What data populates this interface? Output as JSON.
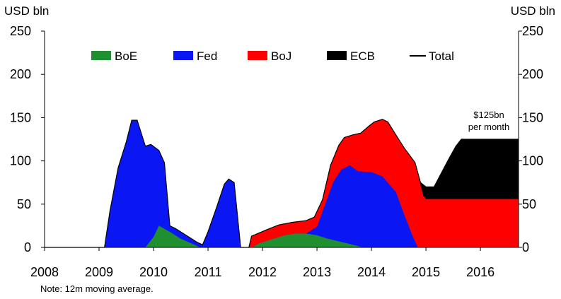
{
  "chart_data": {
    "type": "area",
    "stacked": true,
    "ylabel_left": "USD bln",
    "ylabel_right": "USD bln",
    "ylim": [
      0,
      250
    ],
    "yticks": [
      0,
      50,
      100,
      150,
      200,
      250
    ],
    "xlim": [
      2008.0,
      2016.7
    ],
    "xticks": [
      "2008",
      "2009",
      "2010",
      "2011",
      "2012",
      "2013",
      "2014",
      "2015",
      "2016"
    ],
    "legend_position": "top",
    "legend": [
      "BoE",
      "Fed",
      "BoJ",
      "ECB",
      "Total"
    ],
    "annotation": "$125bn\nper month",
    "note": "Note: 12m moving average.",
    "colors": {
      "BoE": "#1f8f2f",
      "Fed": "#0b17f2",
      "BoJ": "#ff0000",
      "ECB": "#000000",
      "Total": "#000000"
    },
    "series": [
      {
        "name": "BoE",
        "points": [
          [
            2008.0,
            0
          ],
          [
            2009.85,
            0
          ],
          [
            2010.0,
            12
          ],
          [
            2010.1,
            25
          ],
          [
            2010.3,
            18
          ],
          [
            2010.5,
            10
          ],
          [
            2010.75,
            3
          ],
          [
            2010.85,
            0
          ],
          [
            2011.8,
            0
          ],
          [
            2011.95,
            5
          ],
          [
            2012.2,
            10
          ],
          [
            2012.4,
            14
          ],
          [
            2012.6,
            16
          ],
          [
            2012.8,
            16
          ],
          [
            2013.0,
            14
          ],
          [
            2013.2,
            10
          ],
          [
            2013.4,
            7
          ],
          [
            2013.6,
            4
          ],
          [
            2013.85,
            0
          ],
          [
            2016.7,
            0
          ]
        ]
      },
      {
        "name": "Fed",
        "points": [
          [
            2008.0,
            0
          ],
          [
            2009.1,
            0
          ],
          [
            2009.2,
            42
          ],
          [
            2009.35,
            92
          ],
          [
            2009.5,
            122
          ],
          [
            2009.6,
            147
          ],
          [
            2009.7,
            147
          ],
          [
            2009.85,
            117
          ],
          [
            2009.95,
            119
          ],
          [
            2010.1,
            112
          ],
          [
            2010.2,
            98
          ],
          [
            2010.3,
            25
          ],
          [
            2010.4,
            22
          ],
          [
            2010.6,
            14
          ],
          [
            2010.8,
            6
          ],
          [
            2010.9,
            3
          ],
          [
            2011.0,
            18
          ],
          [
            2011.15,
            45
          ],
          [
            2011.3,
            73
          ],
          [
            2011.38,
            79
          ],
          [
            2011.48,
            75
          ],
          [
            2011.6,
            0
          ],
          [
            2011.8,
            0
          ],
          [
            2011.95,
            5
          ],
          [
            2012.2,
            10
          ],
          [
            2012.4,
            14
          ],
          [
            2012.6,
            16
          ],
          [
            2012.8,
            16
          ],
          [
            2013.0,
            24
          ],
          [
            2013.15,
            50
          ],
          [
            2013.3,
            76
          ],
          [
            2013.45,
            90
          ],
          [
            2013.6,
            95
          ],
          [
            2013.75,
            88
          ],
          [
            2014.0,
            87
          ],
          [
            2014.2,
            82
          ],
          [
            2014.45,
            64
          ],
          [
            2014.6,
            38
          ],
          [
            2014.75,
            14
          ],
          [
            2014.85,
            0
          ],
          [
            2016.7,
            0
          ]
        ]
      },
      {
        "name": "BoJ",
        "points": [
          [
            2008.0,
            0
          ],
          [
            2009.1,
            0
          ],
          [
            2009.2,
            42
          ],
          [
            2009.35,
            92
          ],
          [
            2009.5,
            122
          ],
          [
            2009.6,
            147
          ],
          [
            2009.7,
            147
          ],
          [
            2009.85,
            117
          ],
          [
            2009.95,
            119
          ],
          [
            2010.1,
            112
          ],
          [
            2010.2,
            98
          ],
          [
            2010.3,
            25
          ],
          [
            2010.4,
            22
          ],
          [
            2010.6,
            14
          ],
          [
            2010.8,
            6
          ],
          [
            2010.9,
            3
          ],
          [
            2011.0,
            18
          ],
          [
            2011.15,
            45
          ],
          [
            2011.3,
            73
          ],
          [
            2011.38,
            79
          ],
          [
            2011.48,
            75
          ],
          [
            2011.6,
            0
          ],
          [
            2011.75,
            0
          ],
          [
            2011.8,
            13
          ],
          [
            2011.95,
            17
          ],
          [
            2012.1,
            21
          ],
          [
            2012.3,
            26
          ],
          [
            2012.55,
            29
          ],
          [
            2012.8,
            31
          ],
          [
            2012.95,
            35
          ],
          [
            2013.1,
            55
          ],
          [
            2013.25,
            95
          ],
          [
            2013.4,
            118
          ],
          [
            2013.5,
            127
          ],
          [
            2013.65,
            130
          ],
          [
            2013.8,
            132
          ],
          [
            2013.95,
            140
          ],
          [
            2014.05,
            145
          ],
          [
            2014.2,
            148
          ],
          [
            2014.3,
            145
          ],
          [
            2014.45,
            130
          ],
          [
            2014.6,
            115
          ],
          [
            2014.8,
            98
          ],
          [
            2014.9,
            72
          ],
          [
            2014.95,
            60
          ],
          [
            2015.0,
            56
          ],
          [
            2016.7,
            56
          ]
        ]
      },
      {
        "name": "ECB",
        "points": [
          [
            2008.0,
            0
          ],
          [
            2009.1,
            0
          ],
          [
            2009.2,
            42
          ],
          [
            2009.35,
            92
          ],
          [
            2009.5,
            122
          ],
          [
            2009.6,
            147
          ],
          [
            2009.7,
            147
          ],
          [
            2009.85,
            117
          ],
          [
            2009.95,
            119
          ],
          [
            2010.1,
            112
          ],
          [
            2010.2,
            98
          ],
          [
            2010.3,
            25
          ],
          [
            2010.4,
            22
          ],
          [
            2010.6,
            14
          ],
          [
            2010.8,
            6
          ],
          [
            2010.9,
            3
          ],
          [
            2011.0,
            18
          ],
          [
            2011.15,
            45
          ],
          [
            2011.3,
            73
          ],
          [
            2011.38,
            79
          ],
          [
            2011.48,
            75
          ],
          [
            2011.6,
            0
          ],
          [
            2011.75,
            0
          ],
          [
            2011.8,
            13
          ],
          [
            2011.95,
            17
          ],
          [
            2012.1,
            21
          ],
          [
            2012.3,
            26
          ],
          [
            2012.55,
            29
          ],
          [
            2012.8,
            31
          ],
          [
            2012.95,
            35
          ],
          [
            2013.1,
            55
          ],
          [
            2013.25,
            95
          ],
          [
            2013.4,
            118
          ],
          [
            2013.5,
            127
          ],
          [
            2013.65,
            130
          ],
          [
            2013.8,
            132
          ],
          [
            2013.95,
            140
          ],
          [
            2014.05,
            145
          ],
          [
            2014.2,
            148
          ],
          [
            2014.3,
            145
          ],
          [
            2014.45,
            130
          ],
          [
            2014.6,
            115
          ],
          [
            2014.8,
            98
          ],
          [
            2014.9,
            75
          ],
          [
            2015.0,
            70
          ],
          [
            2015.15,
            70
          ],
          [
            2015.25,
            82
          ],
          [
            2015.4,
            100
          ],
          [
            2015.55,
            117
          ],
          [
            2015.65,
            125
          ],
          [
            2016.7,
            125
          ]
        ]
      }
    ]
  }
}
